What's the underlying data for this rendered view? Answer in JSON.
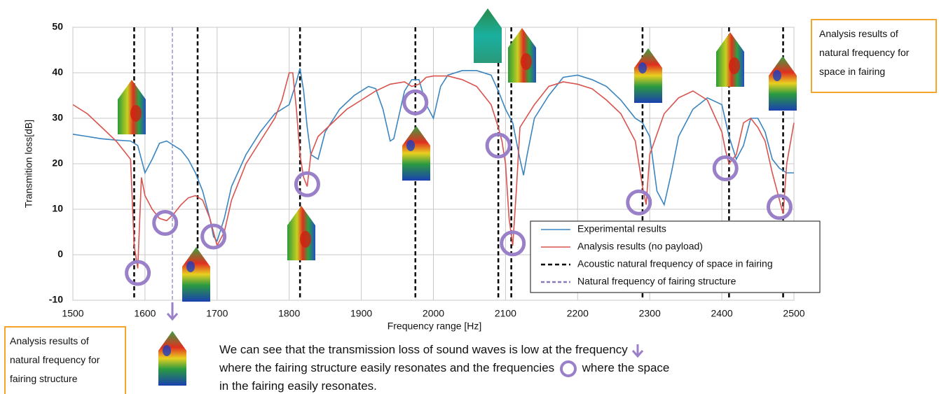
{
  "chart_data": {
    "type": "line",
    "ylabel": "Transmition loss[dB]",
    "xlabel": "Frequency range   [Hz]",
    "xlim": [
      1500,
      2500
    ],
    "xticks": [
      1500,
      1600,
      1700,
      1800,
      1900,
      2000,
      2100,
      2200,
      2300,
      2400,
      2500
    ],
    "ylim": [
      -10,
      50
    ],
    "yticks": [
      -10,
      0,
      10,
      20,
      30,
      40,
      50
    ],
    "grid": true,
    "series": [
      {
        "name": "Experimental results",
        "color": "#3a85c0",
        "x": [
          1500,
          1520,
          1540,
          1560,
          1580,
          1590,
          1600,
          1610,
          1620,
          1630,
          1640,
          1650,
          1660,
          1670,
          1680,
          1690,
          1695,
          1700,
          1710,
          1720,
          1740,
          1760,
          1780,
          1800,
          1810,
          1815,
          1820,
          1825,
          1830,
          1840,
          1850,
          1870,
          1890,
          1910,
          1920,
          1930,
          1940,
          1945,
          1950,
          1960,
          1970,
          1980,
          1990,
          2000,
          2010,
          2020,
          2040,
          2060,
          2080,
          2090,
          2100,
          2110,
          2120,
          2125,
          2130,
          2140,
          2160,
          2180,
          2200,
          2220,
          2240,
          2260,
          2280,
          2290,
          2300,
          2310,
          2320,
          2330,
          2340,
          2360,
          2380,
          2400,
          2410,
          2420,
          2430,
          2440,
          2450,
          2460,
          2470,
          2480,
          2490,
          2500
        ],
        "values": [
          26.5,
          26,
          25.5,
          25.2,
          25,
          24,
          18,
          21,
          24.5,
          25,
          24,
          23,
          21,
          18,
          14,
          8,
          4,
          3,
          8,
          15,
          22,
          27,
          31,
          33,
          38,
          41,
          36,
          28,
          22,
          21,
          27,
          32,
          35,
          37,
          36.5,
          32,
          25,
          25.5,
          29,
          36,
          38.5,
          38.5,
          33,
          30,
          37,
          39.5,
          40.5,
          40.5,
          39.5,
          36,
          32,
          29,
          21,
          17.5,
          22,
          30,
          35,
          39,
          39.5,
          38.5,
          37,
          34,
          30,
          29,
          26,
          14,
          11,
          18,
          26,
          32,
          34.5,
          33,
          26,
          21,
          24,
          30,
          30,
          27,
          21,
          19,
          18,
          18
        ]
      },
      {
        "name": "Analysis results (no payload)",
        "color": "#d9534f",
        "x": [
          1500,
          1520,
          1540,
          1560,
          1570,
          1580,
          1585,
          1590,
          1595,
          1600,
          1610,
          1620,
          1630,
          1640,
          1650,
          1660,
          1670,
          1680,
          1690,
          1700,
          1710,
          1720,
          1740,
          1760,
          1780,
          1790,
          1800,
          1805,
          1810,
          1815,
          1820,
          1825,
          1830,
          1840,
          1860,
          1880,
          1900,
          1920,
          1940,
          1960,
          1970,
          1980,
          1990,
          2000,
          2020,
          2040,
          2060,
          2080,
          2090,
          2095,
          2100,
          2105,
          2110,
          2115,
          2120,
          2140,
          2160,
          2180,
          2200,
          2220,
          2240,
          2260,
          2280,
          2290,
          2295,
          2300,
          2320,
          2340,
          2360,
          2380,
          2400,
          2405,
          2410,
          2420,
          2430,
          2440,
          2450,
          2460,
          2470,
          2480,
          2485,
          2490,
          2500
        ],
        "values": [
          33,
          31,
          28,
          25,
          23,
          21,
          2,
          -3,
          17,
          13,
          10,
          8,
          7.5,
          9,
          11,
          12.5,
          13,
          12,
          8,
          2,
          5,
          12,
          20,
          25,
          30,
          34,
          40,
          40,
          32,
          22,
          17,
          15,
          22,
          26,
          29,
          32,
          34,
          36,
          37.5,
          38,
          37,
          37.5,
          39,
          39.3,
          39.3,
          38.5,
          37,
          33,
          28,
          25,
          20,
          8,
          2,
          14,
          28,
          33,
          37,
          38,
          37.5,
          36.5,
          34,
          31,
          25,
          15,
          11,
          22,
          31,
          34.5,
          36,
          34,
          27,
          23,
          20,
          22,
          29,
          30,
          28,
          25,
          18,
          12,
          9,
          20,
          29
        ]
      }
    ],
    "reference_lines": [
      {
        "name": "Acoustic natural frequency of space in fairing",
        "color": "#000000",
        "x": [
          1585,
          1673,
          1815,
          1975,
          2090,
          2108,
          2290,
          2410,
          2485
        ]
      },
      {
        "name": "Natural frequency of fairing structure",
        "color": "#8a78c0",
        "x": [
          1638
        ]
      }
    ],
    "circles": {
      "color": "#9a80c8",
      "x": [
        1590,
        1628,
        1695,
        1825,
        1975,
        2090,
        2110,
        2285,
        2405,
        2480
      ],
      "y": [
        -4,
        7,
        4,
        15.5,
        33.5,
        24,
        2.5,
        11.5,
        19,
        10.5
      ]
    },
    "callouts": [
      "Analysis results of natural frequency for space in fairing",
      "Analysis results of natural frequency for fairing structure"
    ],
    "note": [
      "We can see that the transmission loss of sound waves is low at the frequency",
      "where the fairing structure easily resonates and the frequencies",
      "where the space",
      "in the fairing easily resonates."
    ]
  }
}
